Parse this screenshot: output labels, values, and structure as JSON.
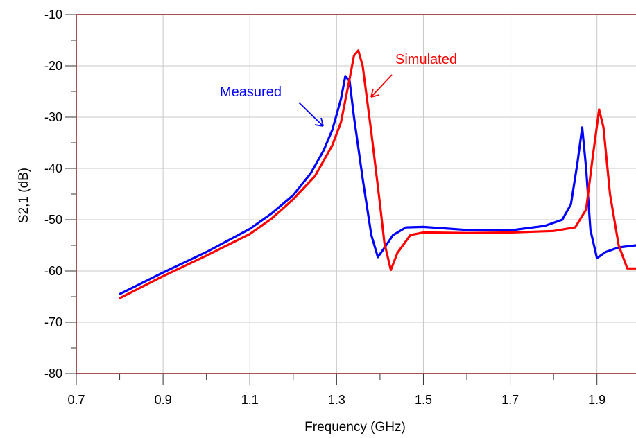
{
  "chart_data": {
    "type": "line",
    "xlabel": "Frequency (GHz)",
    "ylabel": "S2,1 (dB)",
    "xlim": [
      0.7,
      1.99
    ],
    "ylim": [
      -80,
      -10
    ],
    "xticks": [
      0.7,
      0.9,
      1.1,
      1.3,
      1.5,
      1.7,
      1.9
    ],
    "xtick_labels": [
      "0.7",
      "0.9",
      "1.1",
      "1.3",
      "1.5",
      "1.7",
      "1.9"
    ],
    "yticks": [
      -10,
      -20,
      -30,
      -40,
      -50,
      -60,
      -70,
      -80
    ],
    "ytick_labels": [
      "-10",
      "-20",
      "-30",
      "-40",
      "-50",
      "-60",
      "-70",
      "-80"
    ],
    "grid": true,
    "colors": {
      "frame": "#8b1a1a",
      "grid": "#c8c8c8"
    },
    "series": [
      {
        "name": "Measured",
        "color": "#0000ff",
        "x": [
          0.8,
          0.9,
          1.0,
          1.1,
          1.15,
          1.2,
          1.24,
          1.27,
          1.29,
          1.31,
          1.32,
          1.33,
          1.34,
          1.36,
          1.38,
          1.395,
          1.41,
          1.43,
          1.46,
          1.5,
          1.6,
          1.7,
          1.78,
          1.82,
          1.84,
          1.855,
          1.866,
          1.875,
          1.885,
          1.9,
          1.92,
          1.95,
          1.99
        ],
        "y": [
          -64.5,
          -60.3,
          -56.3,
          -51.8,
          -48.8,
          -45.2,
          -41.0,
          -36.5,
          -32.5,
          -26.5,
          -22.0,
          -23.0,
          -30.0,
          -42.0,
          -53.0,
          -57.3,
          -55.5,
          -53.0,
          -51.5,
          -51.4,
          -52.0,
          -52.1,
          -51.2,
          -50.0,
          -47.0,
          -39.0,
          -32.0,
          -40.0,
          -52.0,
          -57.5,
          -56.3,
          -55.4,
          -55.0
        ]
      },
      {
        "name": "Simulated",
        "color": "#ff0000",
        "x": [
          0.8,
          0.9,
          1.0,
          1.1,
          1.15,
          1.2,
          1.25,
          1.29,
          1.31,
          1.33,
          1.34,
          1.35,
          1.36,
          1.38,
          1.4,
          1.41,
          1.425,
          1.44,
          1.47,
          1.5,
          1.6,
          1.7,
          1.8,
          1.85,
          1.875,
          1.89,
          1.905,
          1.915,
          1.93,
          1.95,
          1.97,
          1.99
        ],
        "y": [
          -65.3,
          -61.0,
          -57.0,
          -52.8,
          -49.8,
          -46.0,
          -41.5,
          -35.5,
          -31.0,
          -22.5,
          -18.0,
          -17.0,
          -20.0,
          -33.0,
          -47.0,
          -54.5,
          -59.8,
          -56.5,
          -53.0,
          -52.5,
          -52.6,
          -52.5,
          -52.2,
          -51.5,
          -48.0,
          -38.0,
          -28.5,
          -32.0,
          -45.0,
          -55.0,
          -59.5,
          -59.5
        ]
      }
    ],
    "annotations": [
      {
        "text": "Measured",
        "series": "Measured"
      },
      {
        "text": "Simulated",
        "series": "Simulated"
      }
    ]
  }
}
